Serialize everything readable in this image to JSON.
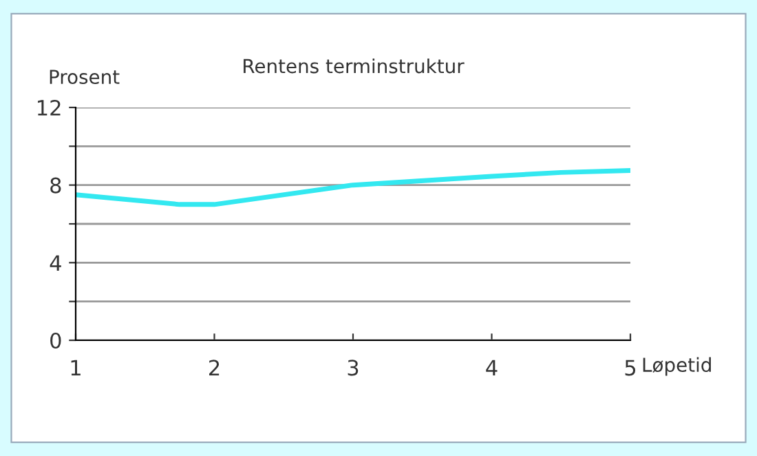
{
  "chart_data": {
    "type": "line",
    "title": "Rentens terminstruktur",
    "xlabel": "Løpetid",
    "ylabel": "Prosent",
    "x": [
      1,
      1.75,
      2,
      3,
      4,
      4.5,
      5
    ],
    "series": [
      {
        "color": "#33e8f0",
        "values": [
          7.5,
          7.0,
          7.0,
          8.0,
          8.45,
          8.65,
          8.75
        ]
      }
    ],
    "xlim": [
      1,
      5
    ],
    "xticks": [
      1,
      2,
      3,
      4,
      5
    ],
    "ylim": [
      0,
      12
    ],
    "yticks": [
      0,
      {
        "value": 2,
        "label": null
      },
      4,
      {
        "value": 6,
        "label": null
      },
      8,
      {
        "value": 10,
        "label": null
      },
      12
    ],
    "grid": "y",
    "marker": "none",
    "line_style": "solid",
    "legend": false
  }
}
